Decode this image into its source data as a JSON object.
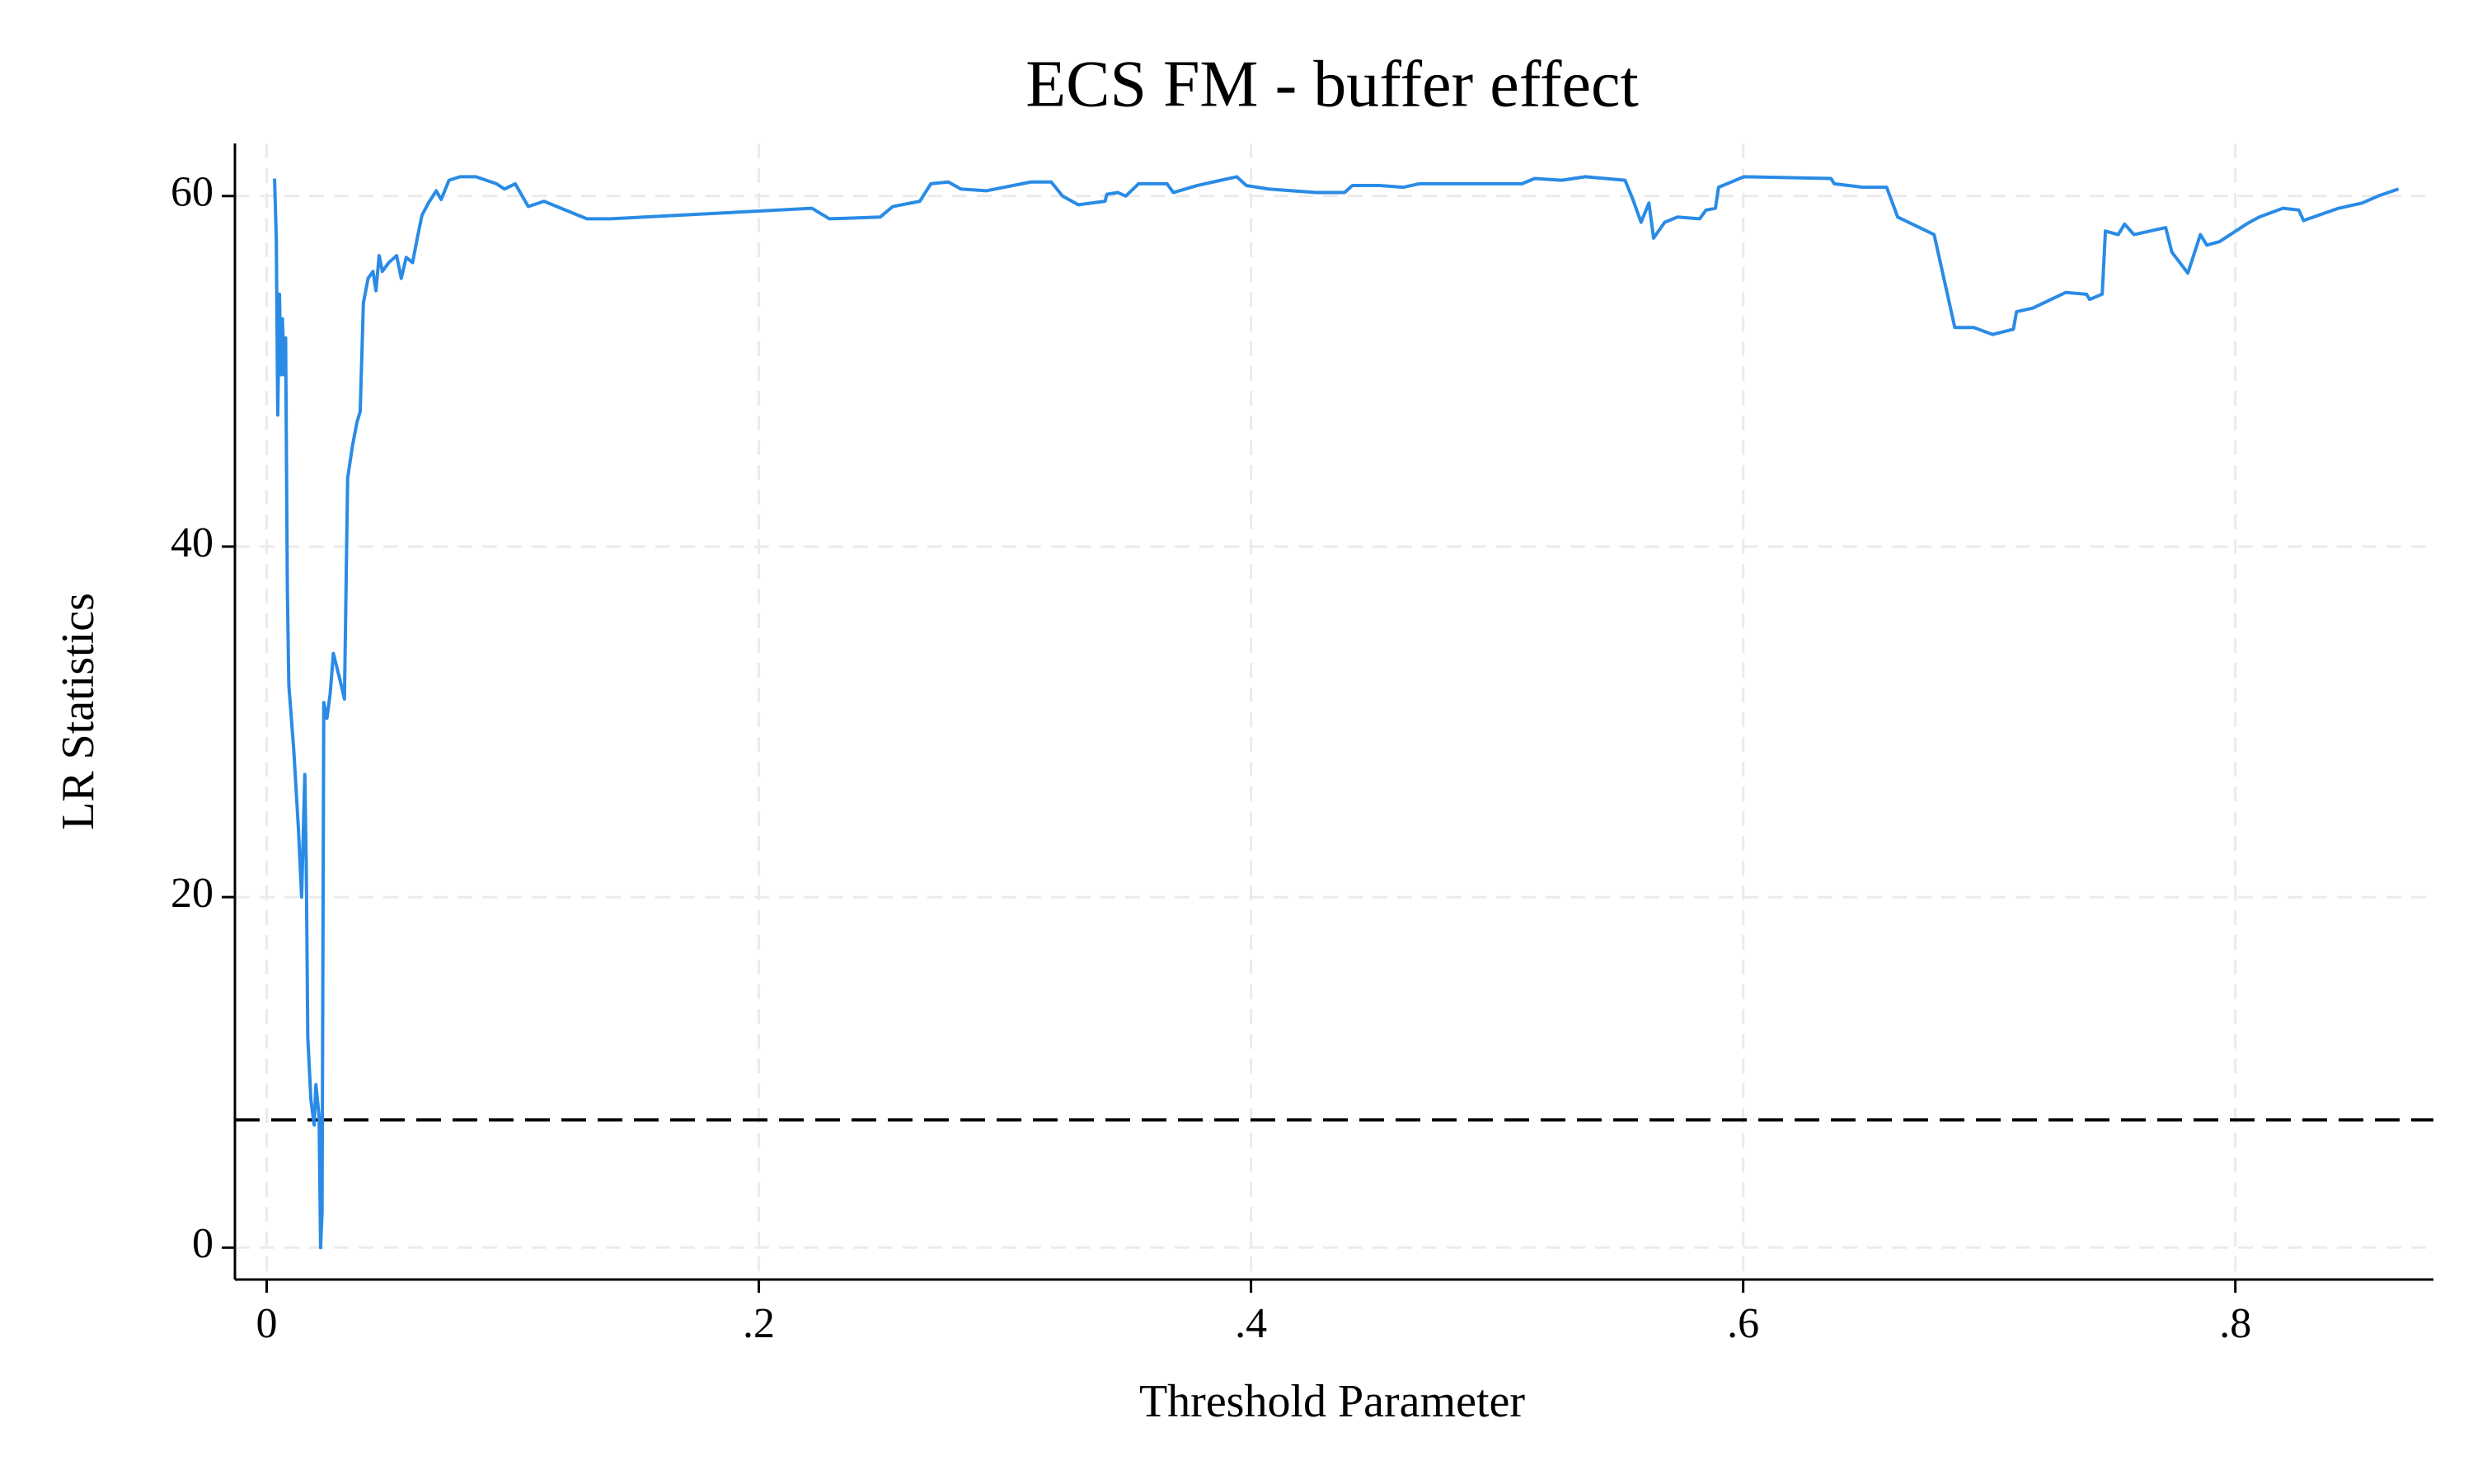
{
  "chart_data": {
    "type": "line",
    "title": "ECS FM - buffer effect",
    "x_label": "Threshold Parameter",
    "y_label": "LR Statistics",
    "xlim": [
      -0.0129,
      0.8805
    ],
    "ylim": [
      -1.82,
      63.0
    ],
    "xticks": [
      0,
      {
        "value": 0.2,
        "label": ".2"
      },
      {
        "value": 0.4,
        "label": ".4"
      },
      {
        "value": 0.6,
        "label": ".6"
      },
      {
        "value": 0.8,
        "label": ".8"
      }
    ],
    "yticks": [
      0,
      20,
      40,
      60
    ],
    "grid": true,
    "hline": 7.29,
    "hline_color": "#000000",
    "series": [
      {
        "color": "#2a8be6",
        "x": [
          0.0032,
          0.0039,
          0.0045,
          0.0052,
          0.0058,
          0.0064,
          0.0071,
          0.0077,
          0.0084,
          0.009,
          0.011,
          0.0129,
          0.0142,
          0.0155,
          0.0161,
          0.0167,
          0.018,
          0.0193,
          0.02,
          0.0213,
          0.0219,
          0.0225,
          0.0232,
          0.0245,
          0.0258,
          0.0271,
          0.0296,
          0.0316,
          0.0329,
          0.0348,
          0.0367,
          0.038,
          0.0393,
          0.0412,
          0.0432,
          0.0444,
          0.0457,
          0.047,
          0.0496,
          0.0528,
          0.0547,
          0.0567,
          0.0593,
          0.0612,
          0.0631,
          0.0657,
          0.0689,
          0.0709,
          0.0741,
          0.0786,
          0.085,
          0.0934,
          0.0966,
          0.101,
          0.1063,
          0.1127,
          0.1301,
          0.1398,
          0.2216,
          0.2287,
          0.2493,
          0.2544,
          0.2654,
          0.2699,
          0.277,
          0.2821,
          0.2924,
          0.3105,
          0.3188,
          0.3234,
          0.3298,
          0.3407,
          0.3414,
          0.3459,
          0.3491,
          0.3543,
          0.3659,
          0.3684,
          0.3781,
          0.3878,
          0.3942,
          0.3981,
          0.407,
          0.4264,
          0.438,
          0.4412,
          0.4522,
          0.4618,
          0.4683,
          0.5101,
          0.5153,
          0.5262,
          0.5359,
          0.552,
          0.5552,
          0.5585,
          0.5617,
          0.5636,
          0.5681,
          0.5733,
          0.5823,
          0.5849,
          0.5887,
          0.59,
          0.5952,
          0.6003,
          0.6357,
          0.637,
          0.6486,
          0.6583,
          0.6628,
          0.6776,
          0.686,
          0.6937,
          0.7014,
          0.7098,
          0.7111,
          0.7176,
          0.7311,
          0.7395,
          0.7408,
          0.7459,
          0.7472,
          0.7524,
          0.755,
          0.7588,
          0.7652,
          0.7717,
          0.7742,
          0.7807,
          0.7858,
          0.7884,
          0.7936,
          0.8045,
          0.8097,
          0.8193,
          0.8258,
          0.8277,
          0.8419,
          0.8515,
          0.858,
          0.8663
        ],
        "values": [
          61.0,
          57.6,
          47.5,
          54.4,
          49.8,
          53.0,
          49.8,
          51.9,
          37.5,
          32.1,
          28.4,
          23.9,
          20.0,
          27.0,
          21.6,
          12.0,
          8.4,
          7.0,
          9.3,
          7.5,
          0.0,
          2.0,
          31.1,
          30.2,
          31.6,
          33.9,
          32.5,
          31.3,
          43.9,
          45.7,
          47.1,
          47.7,
          53.9,
          55.3,
          55.7,
          54.6,
          56.6,
          55.7,
          56.2,
          56.6,
          55.3,
          56.5,
          56.2,
          57.6,
          58.9,
          59.6,
          60.3,
          59.8,
          60.9,
          61.1,
          61.1,
          60.7,
          60.4,
          60.7,
          59.4,
          59.7,
          58.7,
          58.7,
          59.3,
          58.7,
          58.8,
          59.4,
          59.7,
          60.7,
          60.8,
          60.4,
          60.3,
          60.8,
          60.8,
          60.0,
          59.5,
          59.7,
          60.1,
          60.2,
          60.0,
          60.7,
          60.7,
          60.2,
          60.6,
          60.9,
          61.1,
          60.6,
          60.4,
          60.2,
          60.2,
          60.6,
          60.6,
          60.5,
          60.7,
          60.7,
          61.0,
          60.9,
          61.1,
          60.9,
          59.8,
          58.5,
          59.6,
          57.6,
          58.5,
          58.8,
          58.7,
          59.2,
          59.3,
          60.5,
          60.8,
          61.1,
          61.0,
          60.7,
          60.5,
          60.5,
          58.8,
          57.8,
          52.5,
          52.5,
          52.1,
          52.4,
          53.4,
          53.6,
          54.5,
          54.4,
          54.1,
          54.4,
          58.0,
          57.8,
          58.4,
          57.8,
          58.0,
          58.2,
          56.8,
          55.6,
          57.8,
          57.2,
          57.4,
          58.4,
          58.8,
          59.3,
          59.2,
          58.6,
          59.3,
          59.6,
          60.0,
          60.4
        ]
      }
    ]
  }
}
